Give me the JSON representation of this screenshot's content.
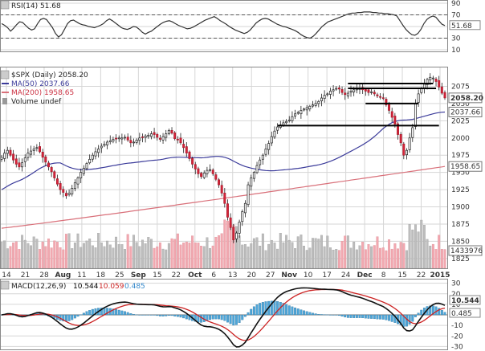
{
  "chart_data": [
    {
      "type": "line",
      "panel": "rsi",
      "legend": "RSI(14) 51.68",
      "ylim": [
        10,
        90
      ],
      "yticks": [
        90,
        70,
        50,
        30,
        10
      ],
      "levels": [
        70,
        30
      ],
      "last_value": "51.68",
      "series": [
        {
          "name": "RSI(14)",
          "color": "#333333",
          "values": [
            55,
            52,
            48,
            42,
            47,
            53,
            58,
            57,
            52,
            47,
            44,
            46,
            55,
            62,
            64,
            62,
            55,
            48,
            38,
            32,
            36,
            45,
            55,
            60,
            61,
            58,
            55,
            53,
            52,
            50,
            49,
            48,
            50,
            52,
            55,
            60,
            63,
            60,
            56,
            52,
            48,
            46,
            45,
            47,
            50,
            49,
            45,
            40,
            37,
            40,
            42,
            46,
            50,
            54,
            57,
            59,
            60,
            58,
            55,
            52,
            50,
            48,
            46,
            47,
            49,
            52,
            55,
            58,
            61,
            63,
            65,
            67,
            64,
            60,
            57,
            54,
            50,
            47,
            44,
            42,
            40,
            38,
            40,
            44,
            50,
            56,
            60,
            63,
            64,
            63,
            60,
            57,
            54,
            52,
            50,
            49,
            47,
            45,
            43,
            40,
            36,
            33,
            31,
            30,
            33,
            38,
            44,
            50,
            54,
            58,
            60,
            62,
            64,
            66,
            68,
            70,
            72,
            73,
            73,
            74,
            74,
            75,
            75,
            75,
            74,
            74,
            73,
            73,
            72,
            72,
            71,
            70,
            68,
            60,
            52,
            45,
            40,
            36,
            35,
            38,
            45,
            55,
            62,
            66,
            68,
            66,
            60,
            54,
            51.68
          ]
        }
      ]
    },
    {
      "type": "candlestick",
      "panel": "price",
      "title": "$SPX (Daily) 2058.20",
      "ylim": [
        1812,
        2100
      ],
      "yticks": [
        2075,
        2050,
        2025,
        2000,
        1975,
        1950,
        1925,
        1900,
        1875,
        1850,
        1825
      ],
      "price_tags": [
        {
          "text": "2058.20",
          "value": 2058.2,
          "style": "bold"
        },
        {
          "text": "2037.66",
          "value": 2037.66,
          "style": "normal"
        },
        {
          "text": "1958.65",
          "value": 1958.65,
          "style": "normal"
        }
      ],
      "volume_tag": {
        "text": "1433976",
        "value": 1433976
      },
      "x_labels": [
        "14",
        "21",
        "28",
        "Aug",
        "11",
        "18",
        "25",
        "Sep",
        "15",
        "22",
        "Oct",
        "6",
        "13",
        "20",
        "27",
        "Nov",
        "10",
        "17",
        "24",
        "Dec",
        "8",
        "15",
        "22",
        "2015"
      ],
      "x_label_bold": [
        "Aug",
        "Sep",
        "Oct",
        "Nov",
        "Dec",
        "2015"
      ],
      "close": [
        1972,
        1978,
        1982,
        1975,
        1968,
        1962,
        1958,
        1964,
        1971,
        1978,
        1981,
        1984,
        1986,
        1980,
        1972,
        1965,
        1958,
        1951,
        1942,
        1933,
        1925,
        1921,
        1916,
        1920,
        1927,
        1935,
        1942,
        1950,
        1956,
        1963,
        1969,
        1975,
        1980,
        1984,
        1988,
        1991,
        1994,
        1996,
        1998,
        1999,
        2000,
        2000,
        2001,
        1997,
        1993,
        1994,
        1997,
        2000,
        2001,
        2003,
        2004,
        2006,
        2005,
        2001,
        1998,
        2002,
        2006,
        2011,
        2007,
        1999,
        1998,
        1993,
        1986,
        1978,
        1970,
        1962,
        1955,
        1948,
        1944,
        1949,
        1953,
        1954,
        1948,
        1940,
        1932,
        1920,
        1905,
        1885,
        1870,
        1852,
        1862,
        1878,
        1893,
        1905,
        1932,
        1942,
        1950,
        1960,
        1968,
        1975,
        1984,
        1992,
        2002,
        2010,
        2016,
        2019,
        2022,
        2024,
        2026,
        2031,
        2035,
        2037,
        2040,
        2042,
        2044,
        2046,
        2048,
        2050,
        2053,
        2058,
        2062,
        2064,
        2068,
        2070,
        2072,
        2071,
        2066,
        2063,
        2065,
        2068,
        2070,
        2071,
        2072,
        2070,
        2068,
        2066,
        2067,
        2064,
        2061,
        2060,
        2058,
        2048,
        2040,
        2030,
        2020,
        2005,
        1993,
        1975,
        1982,
        2000,
        2015,
        2050,
        2064,
        2072,
        2078,
        2085,
        2088,
        2087,
        2082,
        2074,
        2065,
        2058.2
      ],
      "ma50": {
        "legend": "MA(50) 2037.66",
        "color": "#3b3b9a",
        "last": 2037.66
      },
      "ma200": {
        "legend": "MA(200) 1958.65",
        "color": "#d9707a",
        "last": 1958.65
      },
      "volume_legend": "Volume undef",
      "annotations": [
        {
          "type": "hline",
          "value": 2079,
          "from_index": 118,
          "to_index": 147
        },
        {
          "type": "hline",
          "value": 2072,
          "from_index": 118,
          "to_index": 148
        },
        {
          "type": "hline",
          "value": 2050,
          "from_index": 124,
          "to_index": 142
        },
        {
          "type": "hline",
          "value": 2018,
          "from_index": 94,
          "to_index": 149
        }
      ]
    },
    {
      "type": "histogram-line",
      "panel": "macd",
      "legend_label": "MACD(12,26,9)",
      "legend_values": [
        {
          "text": "10.544",
          "color": "#000000"
        },
        {
          "text": "10.059",
          "color": "#cc2222"
        },
        {
          "text": "0.485",
          "color": "#3388cc"
        }
      ],
      "ylim": [
        -32,
        32
      ],
      "yticks": [
        30,
        20,
        10,
        -10,
        -20,
        -30
      ],
      "zero_tag": "0.485",
      "value_tag": "10.544"
    }
  ]
}
